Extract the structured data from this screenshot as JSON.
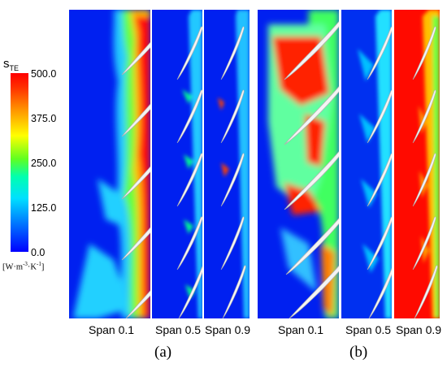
{
  "colorbar": {
    "title_main": "s",
    "title_sub": "TE",
    "ticks": [
      "500.0",
      "375.0",
      "250.0",
      "125.0",
      "0.0"
    ],
    "unit": "[W·m⁻³·K⁻¹]",
    "min": 0.0,
    "max": 500.0,
    "colors": [
      "#0000ff",
      "#00c8ff",
      "#00ffb4",
      "#40ff40",
      "#ffff00",
      "#ff9000",
      "#ff0000"
    ]
  },
  "panels": [
    {
      "label": "(a)",
      "plots": [
        {
          "span_label": "Span 0.1"
        },
        {
          "span_label": "Span 0.5"
        },
        {
          "span_label": "Span 0.9"
        }
      ]
    },
    {
      "label": "(b)",
      "plots": [
        {
          "span_label": "Span 0.1"
        },
        {
          "span_label": "Span 0.5"
        },
        {
          "span_label": "Span 0.9"
        }
      ]
    }
  ]
}
